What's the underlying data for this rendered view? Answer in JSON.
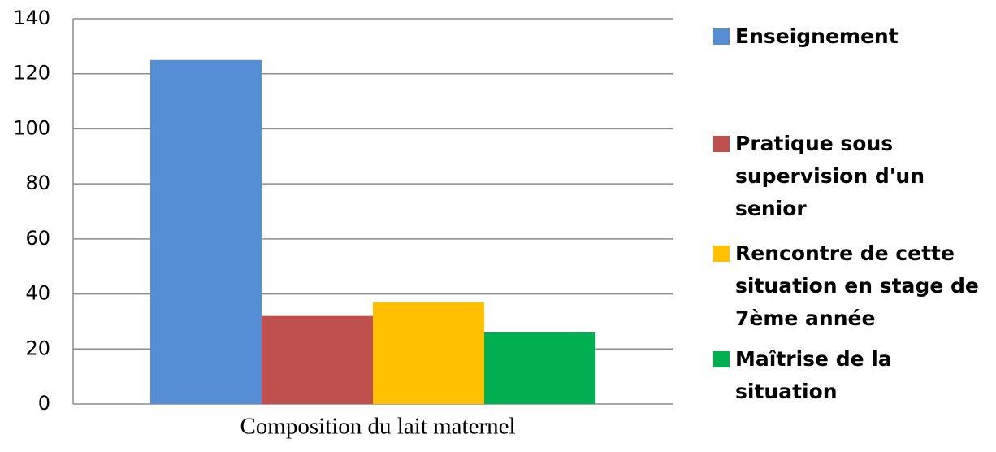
{
  "chart_data": {
    "type": "bar",
    "categories": [
      "Composition du lait maternel"
    ],
    "series": [
      {
        "name": "Enseignement",
        "color": "#558ed5",
        "values": [
          125
        ]
      },
      {
        "name": "Pratique sous supervision d'un senior",
        "color": "#c0504d",
        "values": [
          32
        ]
      },
      {
        "name": "Rencontre de cette situation en stage de 7ème année",
        "color": "#ffc000",
        "values": [
          37
        ]
      },
      {
        "name": "Maîtrise de la situation",
        "color": "#00b050",
        "values": [
          26
        ]
      }
    ],
    "ylim": [
      0,
      140
    ],
    "yticks": [
      0,
      20,
      40,
      60,
      80,
      100,
      120,
      140
    ],
    "grid": true,
    "legend": "right"
  }
}
